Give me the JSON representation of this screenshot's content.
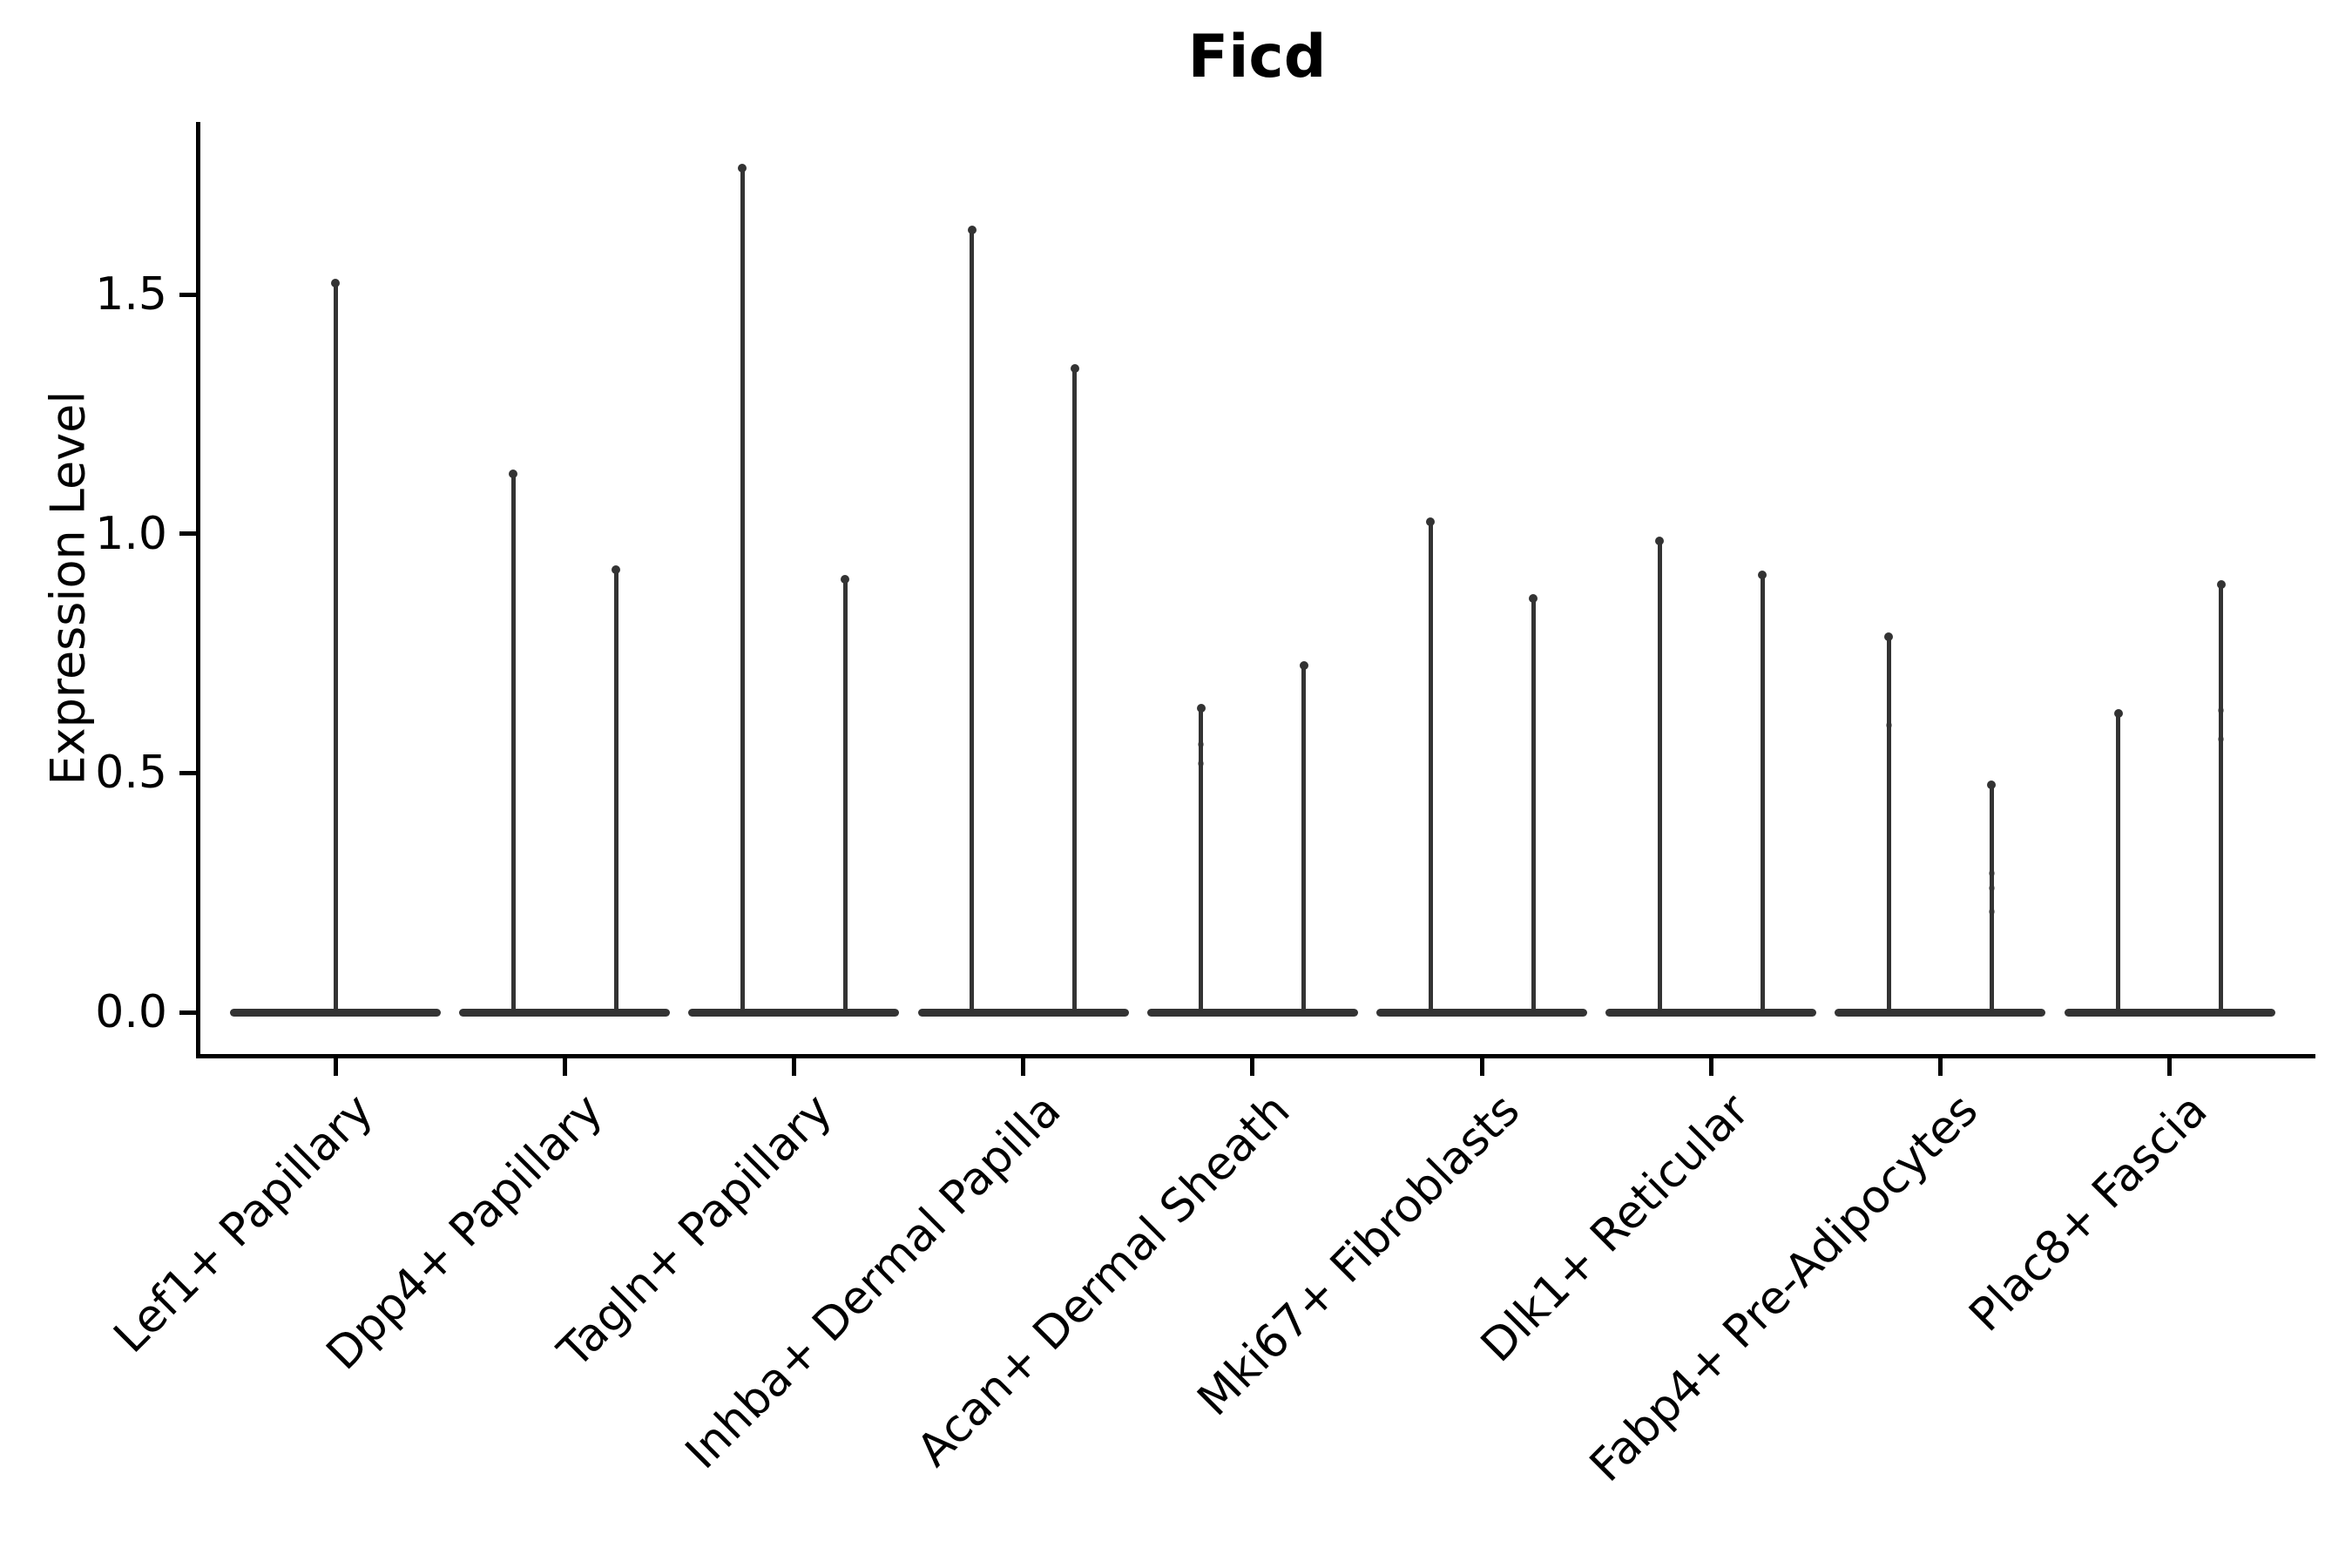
{
  "title": "Ficd",
  "y_axis_label": "Expression Level",
  "chart_data": {
    "type": "violin",
    "title": "Ficd",
    "xlabel": "",
    "ylabel": "Expression Level",
    "ylim": [
      0,
      1.86
    ],
    "yticks": [
      0.0,
      0.5,
      1.0,
      1.5
    ],
    "grid": false,
    "legend": "none",
    "violin_color": "#333333",
    "axis_color": "#000000",
    "description": "Violin plot of Ficd expression; most cells at 0 (flat base), thin spikes to the max expression per violin. All groups except the first contain two side-by-side violins.",
    "categories": [
      "Lef1+ Papillary",
      "Dpp4+ Papillary",
      "Tagln+ Papillary",
      "Inhba+ Dermal Papilla",
      "Acan+ Dermal Sheath",
      "Mki67+ Fibroblasts",
      "Dlk1+ Reticular",
      "Fabp4+ Pre-Adipocytes",
      "Plac8+ Fascia"
    ],
    "groups": [
      {
        "category": "Lef1+ Papillary",
        "violins": [
          {
            "position": "single",
            "max": 1.53,
            "points": []
          }
        ]
      },
      {
        "category": "Dpp4+ Papillary",
        "violins": [
          {
            "position": "left",
            "max": 1.13,
            "points": []
          },
          {
            "position": "right",
            "max": 0.93,
            "points": []
          }
        ]
      },
      {
        "category": "Tagln+ Papillary",
        "violins": [
          {
            "position": "left",
            "max": 1.77,
            "points": []
          },
          {
            "position": "right",
            "max": 0.91,
            "points": []
          }
        ]
      },
      {
        "category": "Inhba+ Dermal Papilla",
        "violins": [
          {
            "position": "left",
            "max": 1.64,
            "points": []
          },
          {
            "position": "right",
            "max": 1.35,
            "points": []
          }
        ]
      },
      {
        "category": "Acan+ Dermal Sheath",
        "violins": [
          {
            "position": "left",
            "max": 0.64,
            "points": [
              0.56,
              0.52
            ]
          },
          {
            "position": "right",
            "max": 0.73,
            "points": []
          }
        ]
      },
      {
        "category": "Mki67+ Fibroblasts",
        "violins": [
          {
            "position": "left",
            "max": 1.03,
            "points": []
          },
          {
            "position": "right",
            "max": 0.87,
            "points": []
          }
        ]
      },
      {
        "category": "Dlk1+ Reticular",
        "violins": [
          {
            "position": "left",
            "max": 0.99,
            "points": []
          },
          {
            "position": "right",
            "max": 0.92,
            "points": []
          }
        ]
      },
      {
        "category": "Fabp4+ Pre-Adipocytes",
        "violins": [
          {
            "position": "left",
            "max": 0.79,
            "points": [
              0.6
            ]
          },
          {
            "position": "right",
            "max": 0.48,
            "points": [
              0.29,
              0.26,
              0.21
            ]
          }
        ]
      },
      {
        "category": "Plac8+ Fascia",
        "violins": [
          {
            "position": "left",
            "max": 0.63,
            "points": []
          },
          {
            "position": "right",
            "max": 0.9,
            "points": [
              0.63,
              0.57
            ]
          }
        ]
      }
    ]
  }
}
